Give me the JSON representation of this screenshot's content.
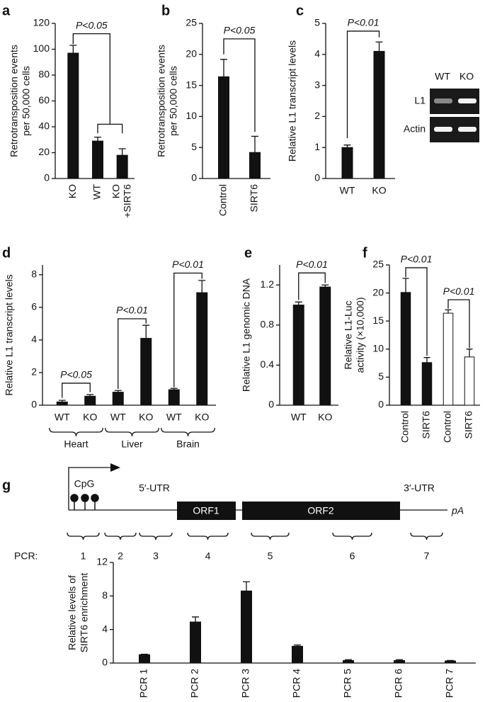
{
  "chart_data": [
    {
      "type": "bar",
      "panel": "a",
      "ylabel": [
        "Retrotransposition events",
        "per 50,000 cells"
      ],
      "categories": [
        "KO",
        "WT",
        [
          "KO",
          "+SIRT6"
        ]
      ],
      "values": [
        97,
        29,
        18
      ],
      "errors": [
        6,
        3,
        5
      ],
      "color": "#111111",
      "ylim": [
        0,
        120
      ],
      "yticks": [
        0,
        20,
        40,
        60,
        80,
        100,
        120
      ],
      "annotations": [
        "P<0.05"
      ]
    },
    {
      "type": "bar",
      "panel": "b",
      "ylabel": [
        "Retrotransposition events",
        "per 50,000 cells"
      ],
      "categories": [
        "Control",
        "SIRT6"
      ],
      "values": [
        16.4,
        4.2
      ],
      "errors": [
        2.8,
        2.6
      ],
      "color": "#111111",
      "ylim": [
        0,
        25
      ],
      "yticks": [
        0,
        5,
        10,
        15,
        20,
        25
      ],
      "annotations": [
        "P<0.05"
      ]
    },
    {
      "type": "bar",
      "panel": "c",
      "ylabel": [
        "Relative L1 transcript levels"
      ],
      "categories": [
        "WT",
        "KO"
      ],
      "values": [
        1.0,
        4.1
      ],
      "errors": [
        0.08,
        0.3
      ],
      "color": "#111111",
      "ylim": [
        0,
        5
      ],
      "yticks": [
        0,
        1,
        2,
        3,
        4,
        5
      ],
      "annotations": [
        "P<0.01"
      ],
      "gel": {
        "lanes": [
          "WT",
          "KO"
        ],
        "rows": [
          "L1",
          "Actin"
        ]
      }
    },
    {
      "type": "bar",
      "panel": "d",
      "ylabel": [
        "Relative L1 transcript levels"
      ],
      "categories": [
        "WT",
        "KO",
        "WT",
        "KO",
        "WT",
        "KO"
      ],
      "groups": [
        "Heart",
        "Liver",
        "Brain"
      ],
      "values": [
        0.2,
        0.55,
        0.8,
        4.1,
        0.95,
        6.9
      ],
      "errors": [
        0.1,
        0.1,
        0.1,
        0.8,
        0.08,
        0.75
      ],
      "color": "#111111",
      "ylim": [
        0,
        8.6
      ],
      "yticks": [
        0,
        2,
        4,
        6,
        8
      ],
      "annotations": [
        "P<0.05",
        "P<0.01",
        "P<0.01"
      ]
    },
    {
      "type": "bar",
      "panel": "e",
      "ylabel": [
        "Relative L1 genomic DNA"
      ],
      "categories": [
        "WT",
        "KO"
      ],
      "values": [
        1.0,
        1.18
      ],
      "errors": [
        0.03,
        0.02
      ],
      "color": "#111111",
      "ylim": [
        0,
        1.4
      ],
      "yticks": [
        0,
        0.4,
        0.8,
        1.2
      ],
      "annotations": [
        "P<0.01"
      ]
    },
    {
      "type": "bar",
      "panel": "f",
      "ylabel": [
        "Relative L1-Luc",
        "activity (×10,000)"
      ],
      "categories": [
        "Control",
        "SIRT6",
        "Control",
        "SIRT6"
      ],
      "values": [
        20.1,
        7.6,
        16.4,
        8.6
      ],
      "errors": [
        2.5,
        0.9,
        0.6,
        1.4
      ],
      "colors": [
        "#111111",
        "#111111",
        "#ffffff",
        "#ffffff"
      ],
      "ylim": [
        0,
        25
      ],
      "yticks": [
        0,
        5,
        10,
        15,
        20,
        25
      ],
      "annotations": [
        "P<0.01",
        "P<0.01"
      ]
    },
    {
      "type": "bar",
      "panel": "g",
      "ylabel": [
        "Relative levels of",
        "SIRT6 enrichment"
      ],
      "categories": [
        "PCR 1",
        "PCR 2",
        "PCR 3",
        "PCR 4",
        "PCR 5",
        "PCR 6",
        "PCR 7"
      ],
      "values": [
        1.0,
        4.9,
        8.6,
        2.0,
        0.3,
        0.3,
        0.25
      ],
      "errors": [
        0.05,
        0.6,
        1.1,
        0.15,
        0.1,
        0.1,
        0.05
      ],
      "color": "#111111",
      "ylim": [
        0,
        12
      ],
      "yticks": [
        0,
        4,
        8,
        12
      ]
    }
  ],
  "gene_map": {
    "cpg": "CpG",
    "utr5": "5′-UTR",
    "orf1": "ORF1",
    "orf2": "ORF2",
    "utr3": "3′-UTR",
    "pa": "pA",
    "pcr_label": "PCR:",
    "pcr": [
      "1",
      "2",
      "3",
      "4",
      "5",
      "6",
      "7"
    ]
  }
}
